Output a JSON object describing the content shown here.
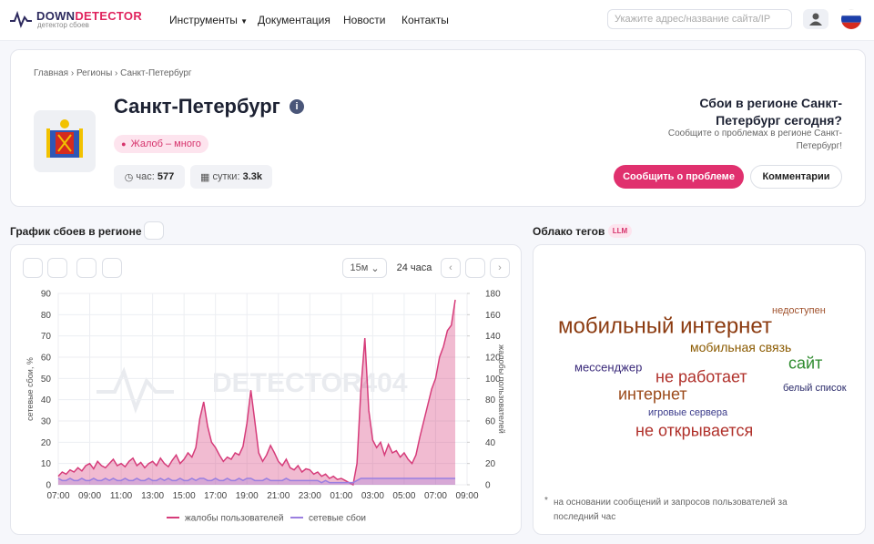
{
  "header": {
    "logo_a": "DOWN",
    "logo_b": "DETECTOR",
    "logo_sub": "детектор сбоев",
    "nav": [
      "Инструменты",
      "Документация",
      "Новости",
      "Контакты"
    ],
    "search_placeholder": "Укажите адрес/название сайта/IP"
  },
  "breadcrumbs": [
    "Главная",
    "Регионы",
    "Санкт-Петербург"
  ],
  "region": {
    "title": "Санкт-Петербург",
    "status": "Жалоб – много",
    "hour_label": "час:",
    "hour_value": "577",
    "day_label": "сутки:",
    "day_value": "3.3k"
  },
  "report": {
    "title": "Сбои в регионе Санкт-Петербург сегодня?",
    "text": "Сообщите о проблемах в регионе Санкт-Петербург!",
    "button": "Сообщить о проблеме",
    "comments": "Комментарии"
  },
  "chart_section": {
    "title": "График сбоев в регионе",
    "interval": "15м",
    "range": "24 часа",
    "watermark": "DETECTOR404"
  },
  "chart_data": {
    "type": "line",
    "ylabel": "сетевые сбои, %",
    "y2label": "жалобы пользователей",
    "categories": [
      "07:00",
      null,
      null,
      null,
      null,
      null,
      null,
      null,
      "09:00",
      null,
      null,
      null,
      null,
      null,
      null,
      null,
      "11:00",
      null,
      null,
      null,
      null,
      null,
      null,
      null,
      "13:00",
      null,
      null,
      null,
      null,
      null,
      null,
      null,
      "15:00",
      null,
      null,
      null,
      null,
      null,
      null,
      null,
      "17:00",
      null,
      null,
      null,
      null,
      null,
      null,
      null,
      "19:00",
      null,
      null,
      null,
      null,
      null,
      null,
      null,
      "21:00",
      null,
      null,
      null,
      null,
      null,
      null,
      null,
      "23:00",
      null,
      null,
      null,
      null,
      null,
      null,
      null,
      "01:00",
      null,
      null,
      null,
      null,
      null,
      null,
      null,
      "03:00",
      null,
      null,
      null,
      null,
      null,
      null,
      null,
      "05:00",
      null,
      null,
      null,
      null,
      null,
      null,
      null,
      "07:00",
      null,
      null,
      null,
      null,
      null,
      null,
      null,
      "09:00"
    ],
    "series": [
      {
        "name": "жалобы пользователей",
        "color": "#d63c7a",
        "axis": "y2",
        "values": [
          8,
          12,
          10,
          14,
          12,
          16,
          13,
          18,
          20,
          15,
          22,
          18,
          16,
          20,
          24,
          18,
          20,
          17,
          22,
          25,
          18,
          21,
          16,
          20,
          22,
          18,
          25,
          20,
          17,
          23,
          28,
          20,
          24,
          30,
          26,
          35,
          62,
          78,
          55,
          40,
          35,
          28,
          22,
          26,
          24,
          30,
          28,
          36,
          58,
          89,
          60,
          30,
          22,
          28,
          37,
          30,
          22,
          18,
          24,
          16,
          14,
          18,
          12,
          15,
          14,
          10,
          12,
          8,
          10,
          6,
          8,
          5,
          6,
          4,
          2,
          0,
          20,
          90,
          138,
          70,
          42,
          35,
          40,
          28,
          38,
          30,
          32,
          26,
          30,
          24,
          20,
          28,
          45,
          60,
          75,
          90,
          100,
          120,
          130,
          145,
          150,
          174,
          null,
          null,
          null
        ]
      },
      {
        "name": "сетевые сбои",
        "color": "#9b7fe0",
        "values": [
          3,
          2,
          2,
          3,
          2,
          2,
          3,
          2,
          2,
          3,
          2,
          2,
          3,
          2,
          3,
          2,
          2,
          3,
          2,
          2,
          3,
          2,
          2,
          3,
          2,
          2,
          3,
          2,
          3,
          2,
          2,
          3,
          2,
          2,
          3,
          2,
          3,
          3,
          2,
          2,
          3,
          2,
          2,
          3,
          2,
          2,
          3,
          2,
          3,
          3,
          2,
          2,
          2,
          3,
          2,
          2,
          2,
          2,
          3,
          2,
          2,
          2,
          2,
          2,
          2,
          2,
          2,
          1,
          2,
          1,
          1,
          1,
          1,
          1,
          1,
          1,
          2,
          3,
          3,
          3,
          3,
          3,
          3,
          3,
          3,
          3,
          3,
          3,
          3,
          3,
          3,
          3,
          3,
          3,
          3,
          3,
          3,
          3,
          3,
          3,
          3,
          3,
          null,
          null,
          null
        ]
      }
    ],
    "ylim": [
      0,
      90
    ],
    "yticks": [
      0,
      10,
      20,
      30,
      40,
      50,
      60,
      70,
      80,
      90
    ],
    "y2lim": [
      0,
      180
    ],
    "y2ticks": [
      0,
      20,
      40,
      60,
      80,
      100,
      120,
      140,
      160,
      180
    ],
    "grid": true,
    "legend": "bottom"
  },
  "tags": {
    "title": "Облако тегов",
    "badge": "LLM",
    "words": [
      {
        "text": "недоступен",
        "color": "#a0522d"
      },
      {
        "text": "мобильный интернет",
        "color": "#8b3a0f"
      },
      {
        "text": "мобильная связь",
        "color": "#8b5a00"
      },
      {
        "text": "сайт",
        "color": "#2e8b2e"
      },
      {
        "text": "мессенджер",
        "color": "#3a2a7a"
      },
      {
        "text": "не работает",
        "color": "#b0302a"
      },
      {
        "text": "белый список",
        "color": "#2a2a6a"
      },
      {
        "text": "интернет",
        "color": "#9b4a1a"
      },
      {
        "text": "игровые сервера",
        "color": "#3a3a8a"
      },
      {
        "text": "не открывается",
        "color": "#b0302a"
      }
    ],
    "note": "на основании сообщений и запросов пользователей за последний час"
  }
}
